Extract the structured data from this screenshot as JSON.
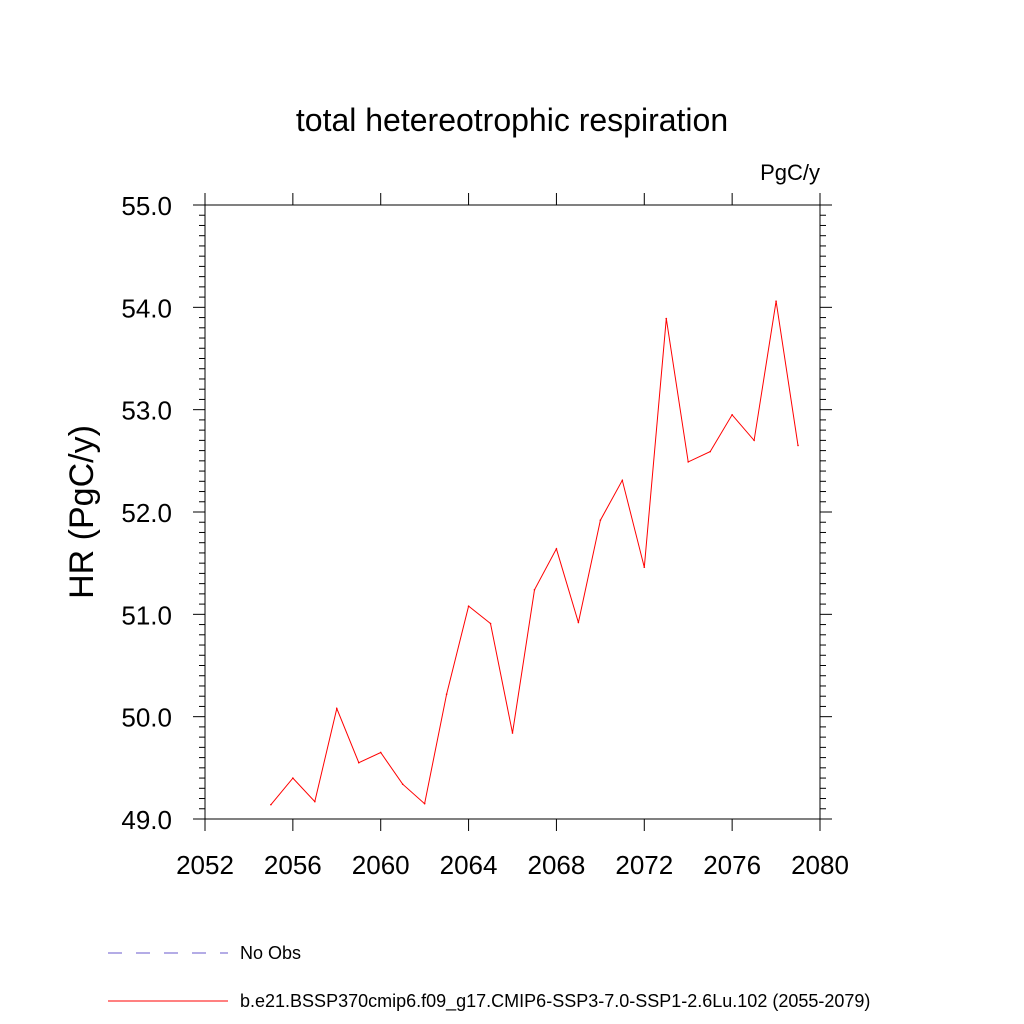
{
  "chart_data": {
    "type": "line",
    "title": "total hetereotrophic respiration",
    "units_label": "PgC/y",
    "ylabel": "HR  (PgC/y)",
    "xlabel": "",
    "xlim": [
      2052,
      2080
    ],
    "ylim": [
      49.0,
      55.0
    ],
    "x_ticks": [
      2052,
      2056,
      2060,
      2064,
      2068,
      2072,
      2076,
      2080
    ],
    "y_ticks": [
      "49.0",
      "50.0",
      "51.0",
      "52.0",
      "53.0",
      "54.0",
      "55.0"
    ],
    "grid": false,
    "legend_position": "bottom",
    "x": [
      2055,
      2056,
      2057,
      2058,
      2059,
      2060,
      2061,
      2062,
      2063,
      2064,
      2065,
      2066,
      2067,
      2068,
      2069,
      2070,
      2071,
      2072,
      2073,
      2074,
      2075,
      2076,
      2077,
      2078,
      2079
    ],
    "series": [
      {
        "name": "b.e21.BSSP370cmip6.f09_g17.CMIP6-SSP3-7.0-SSP1-2.6Lu.102 (2055-2079)",
        "color": "#ff0000",
        "values": [
          49.14,
          49.4,
          49.17,
          50.08,
          49.55,
          49.65,
          49.34,
          49.15,
          50.22,
          51.08,
          50.91,
          49.84,
          51.24,
          51.64,
          50.92,
          51.92,
          52.31,
          51.46,
          53.89,
          52.49,
          52.59,
          52.95,
          52.7,
          54.06,
          52.65
        ]
      }
    ],
    "legend": [
      {
        "label": "No Obs",
        "color": "#6a5acd",
        "dash": true
      },
      {
        "label": "b.e21.BSSP370cmip6.f09_g17.CMIP6-SSP3-7.0-SSP1-2.6Lu.102 (2055-2079)",
        "color": "#ff0000",
        "dash": false
      }
    ]
  }
}
